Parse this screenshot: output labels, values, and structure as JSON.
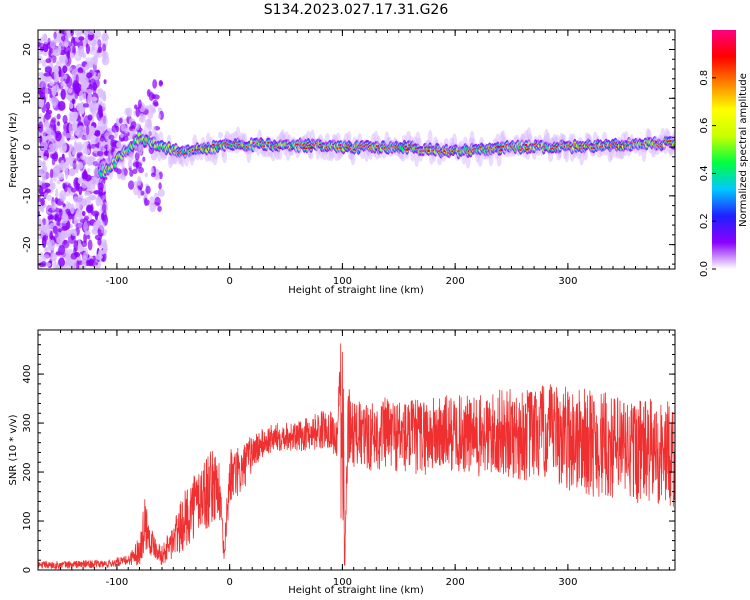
{
  "title": "S134.2023.027.17.31.G26",
  "chart_data": [
    {
      "type": "heatmap",
      "xlabel": "Height of straight line (km)",
      "ylabel": "Frequency (Hz)",
      "xlim": [
        -170,
        395
      ],
      "ylim": [
        -25,
        24
      ],
      "x_ticks": [
        -100,
        0,
        100,
        200,
        300
      ],
      "y_ticks": [
        -20,
        -10,
        0,
        10,
        20
      ],
      "colorbar": {
        "label": "Normalized spectral amplitude",
        "range": [
          0,
          1
        ],
        "ticks": [
          "0.0",
          "0.2",
          "0.4",
          "0.6",
          "0.8"
        ],
        "tick_values": [
          0.0,
          0.2,
          0.4,
          0.6,
          0.8
        ],
        "colors": [
          "#ffffff",
          "#8a00ff",
          "#2020ff",
          "#00c8ff",
          "#00ff40",
          "#c8ff00",
          "#ffff00",
          "#ff8000",
          "#ff0000",
          "#ff0080"
        ]
      },
      "ridge": {
        "description_points_x": [
          -110,
          -80,
          -60,
          -40,
          0,
          50,
          100,
          150,
          200,
          250,
          300,
          350,
          395
        ],
        "frequency_hz": [
          -5,
          2,
          0,
          -1,
          0.5,
          0.5,
          0,
          0,
          -1,
          0,
          0,
          0.5,
          0.8
        ]
      }
    },
    {
      "type": "line",
      "xlabel": "Height of straight line (km)",
      "ylabel": "SNR (10 * v/v)",
      "xlim": [
        -170,
        395
      ],
      "ylim": [
        0,
        490
      ],
      "x_ticks": [
        -100,
        0,
        100,
        200,
        300
      ],
      "y_ticks": [
        0,
        100,
        200,
        300,
        400
      ],
      "line_color": "#f03030",
      "series": [
        {
          "x": [
            -170,
            -150,
            -130,
            -110,
            -90,
            -80,
            -75,
            -70,
            -60,
            -50,
            -40,
            -30,
            -20,
            -10,
            -5,
            0,
            10,
            20,
            30,
            40,
            50,
            60,
            70,
            80,
            90,
            95,
            100,
            102,
            105,
            110,
            120,
            140,
            160,
            180,
            200,
            220,
            240,
            260,
            280,
            300,
            320,
            340,
            360,
            380,
            395
          ],
          "y": [
            10,
            10,
            12,
            12,
            20,
            40,
            100,
            60,
            30,
            60,
            100,
            140,
            160,
            180,
            30,
            190,
            200,
            240,
            260,
            270,
            275,
            270,
            280,
            285,
            290,
            260,
            480,
            10,
            300,
            280,
            270,
            280,
            270,
            275,
            280,
            270,
            280,
            275,
            280,
            270,
            260,
            250,
            245,
            240,
            235
          ],
          "spread": [
            8,
            8,
            8,
            8,
            10,
            30,
            60,
            30,
            20,
            40,
            60,
            70,
            80,
            70,
            20,
            60,
            50,
            40,
            30,
            30,
            30,
            30,
            35,
            40,
            40,
            40,
            60,
            0,
            80,
            70,
            70,
            75,
            80,
            80,
            80,
            85,
            90,
            95,
            100,
            110,
            110,
            110,
            110,
            110,
            110
          ]
        }
      ]
    }
  ]
}
